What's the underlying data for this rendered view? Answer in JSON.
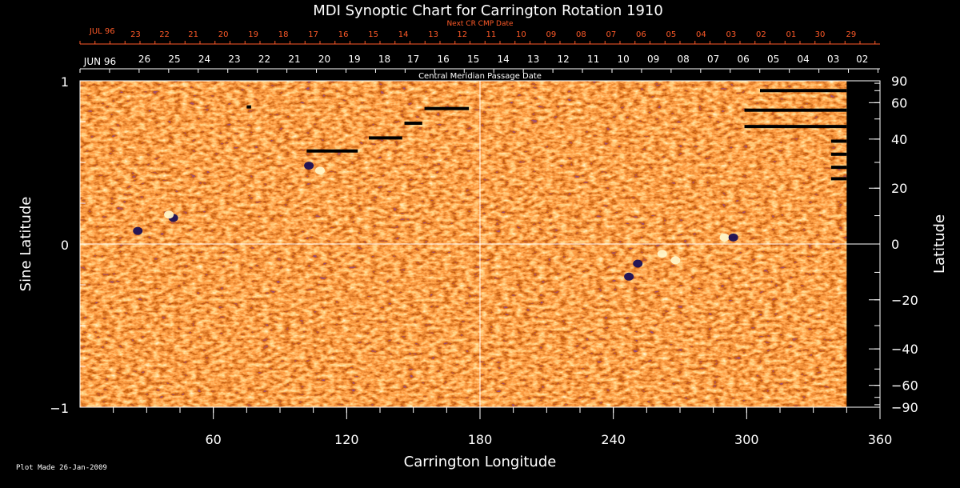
{
  "chart_data": {
    "type": "heatmap",
    "title": "MDI Synoptic Chart for Carrington Rotation 1910",
    "xlabel": "Carrington Longitude",
    "ylabel_left": "Sine Latitude",
    "ylabel_right": "Latitude",
    "xlim": [
      0,
      360
    ],
    "ylim": [
      -1,
      1
    ],
    "x_ticks": [
      60,
      120,
      180,
      240,
      300,
      360
    ],
    "y_ticks_left": [
      {
        "value": 1,
        "label": "1"
      },
      {
        "value": 0,
        "label": "0"
      },
      {
        "value": -1,
        "label": "−1"
      }
    ],
    "y_ticks_right_degrees": [
      90,
      60,
      40,
      20,
      0,
      -20,
      -40,
      -60,
      -90
    ],
    "y_ticks_right_labels": [
      "90",
      "60",
      "40",
      "20",
      "0",
      "−20",
      "−40",
      "−60",
      "−90"
    ],
    "grid_lines": {
      "longitude": 180,
      "sine_latitude": 0
    },
    "colormap": [
      "#1a1060",
      "#8a1a00",
      "#ff5a10",
      "#ffb040",
      "#fff8d0"
    ],
    "top_axis_red": {
      "title": "Next CR CMP Date",
      "month_label": "JUL 96",
      "month_label_longitude": 10,
      "labels": [
        {
          "label": "23",
          "longitude": 25
        },
        {
          "label": "22",
          "longitude": 38
        },
        {
          "label": "21",
          "longitude": 51
        },
        {
          "label": "20",
          "longitude": 64.5
        },
        {
          "label": "19",
          "longitude": 78
        },
        {
          "label": "18",
          "longitude": 91.5
        },
        {
          "label": "17",
          "longitude": 105
        },
        {
          "label": "16",
          "longitude": 118.5
        },
        {
          "label": "15",
          "longitude": 132
        },
        {
          "label": "14",
          "longitude": 145.5
        },
        {
          "label": "13",
          "longitude": 159
        },
        {
          "label": "12",
          "longitude": 172
        },
        {
          "label": "11",
          "longitude": 185
        },
        {
          "label": "10",
          "longitude": 198.5
        },
        {
          "label": "09",
          "longitude": 212
        },
        {
          "label": "08",
          "longitude": 225.5
        },
        {
          "label": "07",
          "longitude": 239
        },
        {
          "label": "06",
          "longitude": 252.5
        },
        {
          "label": "05",
          "longitude": 266
        },
        {
          "label": "04",
          "longitude": 279.5
        },
        {
          "label": "03",
          "longitude": 293
        },
        {
          "label": "02",
          "longitude": 306.5
        },
        {
          "label": "01",
          "longitude": 320
        },
        {
          "label": "30",
          "longitude": 333
        },
        {
          "label": "29",
          "longitude": 347
        }
      ]
    },
    "top_axis_white": {
      "title": "Central Meridian Passage Date",
      "month_label": "JUN 96",
      "month_label_longitude": 9,
      "labels": [
        {
          "label": "26",
          "longitude": 29
        },
        {
          "label": "25",
          "longitude": 42.5
        },
        {
          "label": "24",
          "longitude": 56
        },
        {
          "label": "23",
          "longitude": 69.5
        },
        {
          "label": "22",
          "longitude": 83
        },
        {
          "label": "21",
          "longitude": 96.5
        },
        {
          "label": "20",
          "longitude": 110
        },
        {
          "label": "19",
          "longitude": 123.5
        },
        {
          "label": "18",
          "longitude": 137
        },
        {
          "label": "17",
          "longitude": 150
        },
        {
          "label": "16",
          "longitude": 163.5
        },
        {
          "label": "15",
          "longitude": 177
        },
        {
          "label": "14",
          "longitude": 190.5
        },
        {
          "label": "13",
          "longitude": 204
        },
        {
          "label": "12",
          "longitude": 217.5
        },
        {
          "label": "11",
          "longitude": 231
        },
        {
          "label": "10",
          "longitude": 244.5
        },
        {
          "label": "09",
          "longitude": 258
        },
        {
          "label": "08",
          "longitude": 271.5
        },
        {
          "label": "07",
          "longitude": 285
        },
        {
          "label": "06",
          "longitude": 298.5
        },
        {
          "label": "05",
          "longitude": 312
        },
        {
          "label": "04",
          "longitude": 325.5
        },
        {
          "label": "03",
          "longitude": 339
        },
        {
          "label": "02",
          "longitude": 352
        }
      ]
    },
    "active_regions": [
      {
        "longitude": 42,
        "sine_latitude": 0.16,
        "polarity": "negative"
      },
      {
        "longitude": 40,
        "sine_latitude": 0.18,
        "polarity": "positive"
      },
      {
        "longitude": 26,
        "sine_latitude": 0.08,
        "polarity": "negative"
      },
      {
        "longitude": 103,
        "sine_latitude": 0.48,
        "polarity": "negative"
      },
      {
        "longitude": 108,
        "sine_latitude": 0.45,
        "polarity": "positive"
      },
      {
        "longitude": 251,
        "sine_latitude": -0.12,
        "polarity": "negative"
      },
      {
        "longitude": 247,
        "sine_latitude": -0.2,
        "polarity": "negative"
      },
      {
        "longitude": 268,
        "sine_latitude": -0.1,
        "polarity": "positive"
      },
      {
        "longitude": 262,
        "sine_latitude": -0.06,
        "polarity": "positive"
      },
      {
        "longitude": 290,
        "sine_latitude": 0.04,
        "polarity": "positive"
      },
      {
        "longitude": 294,
        "sine_latitude": 0.04,
        "polarity": "negative"
      }
    ],
    "data_gaps": [
      {
        "lon_start": 75,
        "lon_end": 77,
        "sine_latitude": 0.84
      },
      {
        "lon_start": 102,
        "lon_end": 125,
        "sine_latitude": 0.57
      },
      {
        "lon_start": 130,
        "lon_end": 145,
        "sine_latitude": 0.65
      },
      {
        "lon_start": 146,
        "lon_end": 154,
        "sine_latitude": 0.74
      },
      {
        "lon_start": 155,
        "lon_end": 175,
        "sine_latitude": 0.83
      },
      {
        "lon_start": 306,
        "lon_end": 345,
        "sine_latitude": 0.94
      },
      {
        "lon_start": 299,
        "lon_end": 345,
        "sine_latitude": 0.82
      },
      {
        "lon_start": 299,
        "lon_end": 345,
        "sine_latitude": 0.72
      },
      {
        "lon_start": 338,
        "lon_end": 345,
        "sine_latitude": 0.63
      },
      {
        "lon_start": 338,
        "lon_end": 345,
        "sine_latitude": 0.55
      },
      {
        "lon_start": 338,
        "lon_end": 345,
        "sine_latitude": 0.47
      },
      {
        "lon_start": 338,
        "lon_end": 345,
        "sine_latitude": 0.4
      }
    ],
    "data_gap_strip_longitude": [
      345,
      360
    ]
  },
  "footer": {
    "plot_made": "Plot Made 26-Jan-2009"
  }
}
